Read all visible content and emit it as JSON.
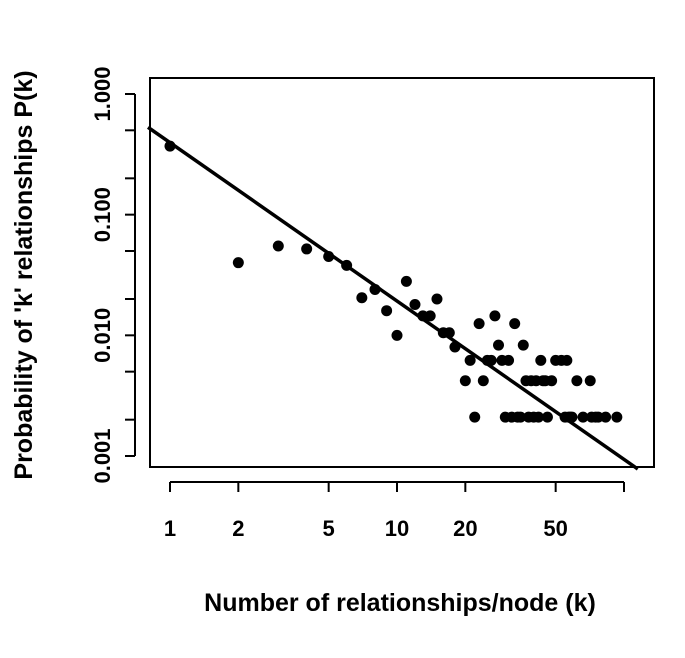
{
  "chart_data": {
    "type": "scatter",
    "title": "",
    "xlabel": "Number of relationships/node (k)",
    "ylabel": "Probability of 'k' relationships P(k)",
    "x_scale": "log",
    "y_scale": "log",
    "xlim": [
      0.8,
      115
    ],
    "ylim": [
      0.0007,
      1.5
    ],
    "x_ticks": [
      1,
      2,
      5,
      10,
      20,
      50,
      100
    ],
    "x_tick_labels": [
      "1",
      "2",
      "5",
      "10",
      "20",
      "50",
      ""
    ],
    "y_ticks": [
      0.001,
      0.002,
      0.005,
      0.01,
      0.02,
      0.05,
      0.1,
      0.2,
      0.5,
      1
    ],
    "y_tick_labels": [
      "0.001",
      "",
      "",
      "0.010",
      "",
      "",
      "0.100",
      "",
      "",
      "1.000"
    ],
    "grid": false,
    "legend": "none",
    "marker_color": "#000000",
    "line_color": "#000000",
    "points": [
      [
        1,
        0.37
      ],
      [
        2,
        0.04
      ],
      [
        3,
        0.055
      ],
      [
        4,
        0.052
      ],
      [
        5,
        0.045
      ],
      [
        6,
        0.038
      ],
      [
        7,
        0.0205
      ],
      [
        8,
        0.024
      ],
      [
        9,
        0.016
      ],
      [
        10,
        0.01
      ],
      [
        11,
        0.028
      ],
      [
        12,
        0.018
      ],
      [
        13,
        0.0145
      ],
      [
        14,
        0.0145
      ],
      [
        15,
        0.02
      ],
      [
        16,
        0.0105
      ],
      [
        17,
        0.0105
      ],
      [
        18,
        0.008
      ],
      [
        20,
        0.0042
      ],
      [
        21,
        0.0062
      ],
      [
        22,
        0.0021
      ],
      [
        23,
        0.0125
      ],
      [
        24,
        0.0042
      ],
      [
        25,
        0.0062
      ],
      [
        26,
        0.0062
      ],
      [
        27,
        0.0145
      ],
      [
        28,
        0.0083
      ],
      [
        29,
        0.0062
      ],
      [
        30,
        0.0021
      ],
      [
        31,
        0.0062
      ],
      [
        32,
        0.0021
      ],
      [
        33,
        0.0125
      ],
      [
        34,
        0.0021
      ],
      [
        35,
        0.0021
      ],
      [
        36,
        0.0083
      ],
      [
        37,
        0.0042
      ],
      [
        38,
        0.0021
      ],
      [
        39,
        0.0042
      ],
      [
        40,
        0.0021
      ],
      [
        41,
        0.0042
      ],
      [
        42,
        0.0021
      ],
      [
        43,
        0.0062
      ],
      [
        44,
        0.0042
      ],
      [
        45,
        0.0042
      ],
      [
        46,
        0.0021
      ],
      [
        48,
        0.0042
      ],
      [
        50,
        0.0062
      ],
      [
        53,
        0.0062
      ],
      [
        55,
        0.0021
      ],
      [
        56,
        0.0062
      ],
      [
        57,
        0.0021
      ],
      [
        58,
        0.0021
      ],
      [
        59,
        0.0021
      ],
      [
        62,
        0.0042
      ],
      [
        66,
        0.0021
      ],
      [
        71,
        0.0042
      ],
      [
        72,
        0.0021
      ],
      [
        75,
        0.0021
      ],
      [
        77,
        0.0021
      ],
      [
        83,
        0.0021
      ],
      [
        93,
        0.0021
      ]
    ],
    "fit_line": {
      "x": [
        0.8,
        115
      ],
      "y": [
        0.53,
        0.00078
      ]
    }
  }
}
